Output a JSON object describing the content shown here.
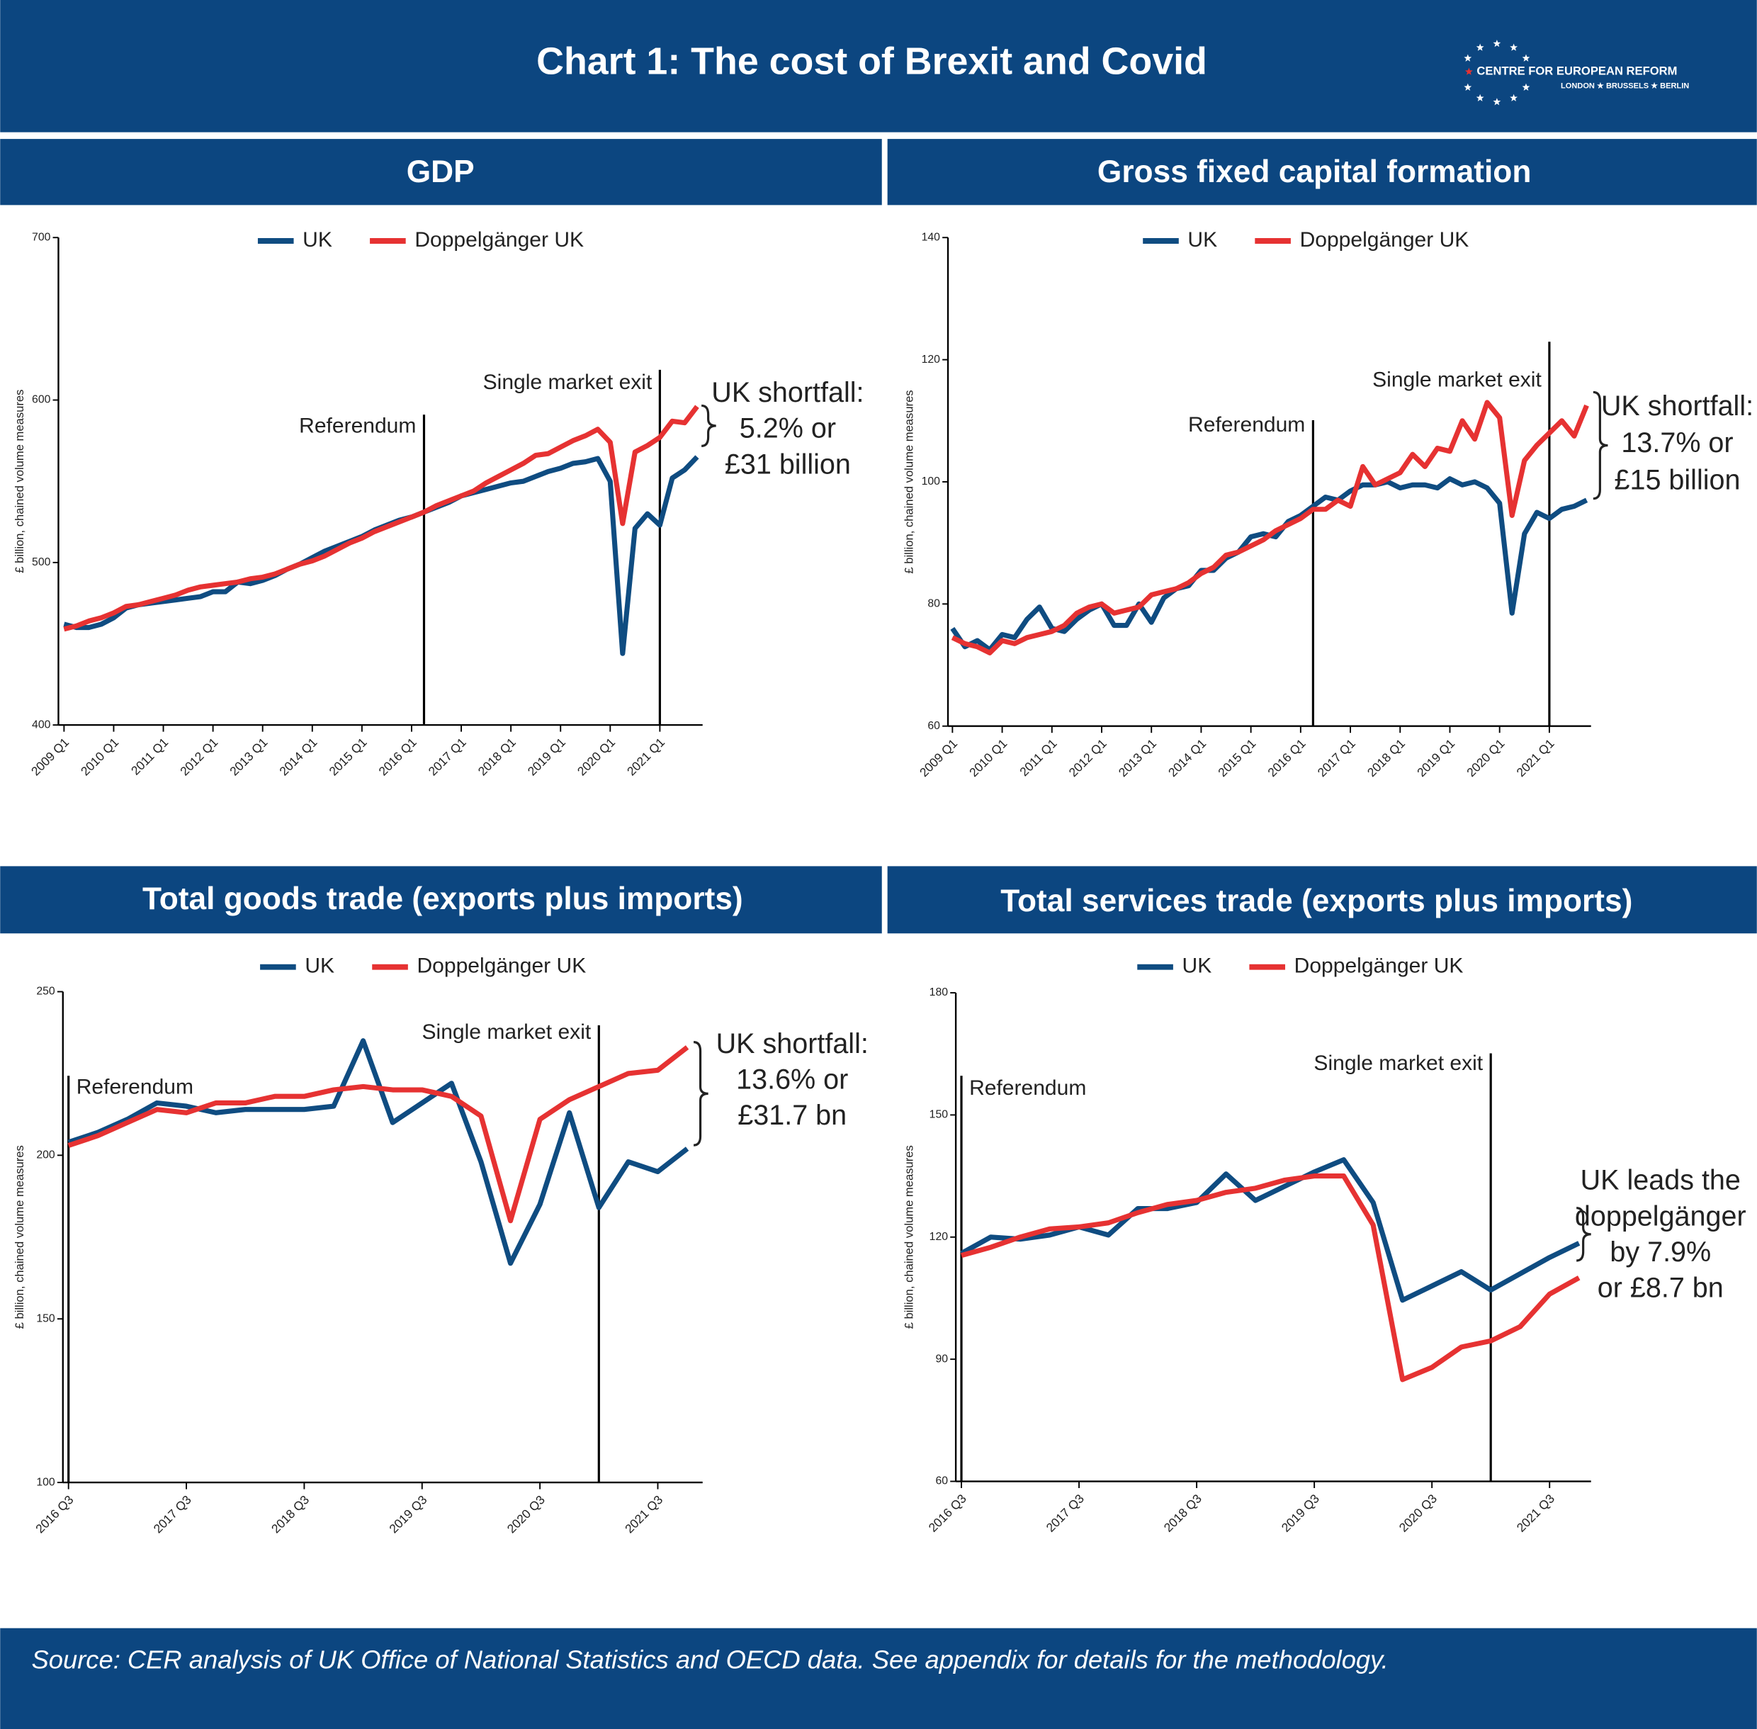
{
  "header": {
    "title": "Chart 1: The cost of Brexit and Covid",
    "logo": {
      "name": "CENTRE FOR EUROPEAN REFORM",
      "cities": "LONDON ★ BRUSSELS ★ BERLIN"
    }
  },
  "footer": {
    "source": "Source: CER analysis of UK Office of National Statistics and OECD data. See appendix for details for the methodology."
  },
  "chart_data": [
    {
      "type": "line",
      "title": "GDP",
      "ylabel": "£ billion, chained volume measures",
      "categories": [
        "2009 Q1",
        null,
        null,
        null,
        "2010 Q1",
        null,
        null,
        null,
        "2011 Q1",
        null,
        null,
        null,
        "2012 Q1",
        null,
        null,
        null,
        "2013 Q1",
        null,
        null,
        null,
        "2014 Q1",
        null,
        null,
        null,
        "2015 Q1",
        null,
        null,
        null,
        "2016 Q1",
        null,
        null,
        null,
        "2017 Q1",
        null,
        null,
        null,
        "2018 Q1",
        null,
        null,
        null,
        "2019 Q1",
        null,
        null,
        null,
        "2020 Q1",
        null,
        null,
        null,
        "2021 Q1",
        null,
        null,
        null
      ],
      "series": [
        {
          "name": "UK",
          "color": "#0f4c81",
          "values": [
            462,
            460,
            460,
            462,
            466,
            472,
            474,
            475,
            476,
            477,
            478,
            479,
            482,
            482,
            488,
            487,
            489,
            492,
            496,
            499,
            503,
            507,
            510,
            513,
            516,
            520,
            523,
            526,
            528,
            531,
            534,
            537,
            541,
            543,
            545,
            547,
            549,
            550,
            553,
            556,
            558,
            561,
            562,
            564,
            550,
            444,
            521,
            530,
            523,
            552,
            557,
            565
          ]
        },
        {
          "name": "Doppelgänger UK",
          "color": "#e63232",
          "values": [
            459,
            461,
            464,
            466,
            469,
            473,
            474,
            476,
            478,
            480,
            483,
            485,
            486,
            487,
            488,
            490,
            491,
            493,
            496,
            499,
            501,
            504,
            508,
            512,
            515,
            519,
            522,
            525,
            528,
            531,
            535,
            538,
            541,
            544,
            549,
            553,
            557,
            561,
            566,
            567,
            571,
            575,
            578,
            582,
            574,
            524,
            568,
            572,
            577,
            587,
            586,
            596
          ]
        }
      ],
      "ylim": [
        400,
        700
      ],
      "yticks": [
        400,
        500,
        600,
        700
      ],
      "annotations": [
        {
          "text": "Referendum",
          "x": 29
        },
        {
          "text": "Single market exit",
          "x": 48
        }
      ],
      "note": [
        "UK shortfall:",
        "5.2% or",
        "£31 billion"
      ]
    },
    {
      "type": "line",
      "title": "Gross fixed capital formation",
      "ylabel": "£ billion, chained volume measures",
      "categories": [
        "2009 Q1",
        null,
        null,
        null,
        "2010 Q1",
        null,
        null,
        null,
        "2011 Q1",
        null,
        null,
        null,
        "2012 Q1",
        null,
        null,
        null,
        "2013 Q1",
        null,
        null,
        null,
        "2014 Q1",
        null,
        null,
        null,
        "2015 Q1",
        null,
        null,
        null,
        "2016 Q1",
        null,
        null,
        null,
        "2017 Q1",
        null,
        null,
        null,
        "2018 Q1",
        null,
        null,
        null,
        "2019 Q1",
        null,
        null,
        null,
        "2020 Q1",
        null,
        null,
        null,
        "2021 Q1",
        null,
        null,
        null
      ],
      "series": [
        {
          "name": "UK",
          "color": "#0f4c81",
          "values": [
            76,
            73,
            74,
            72.5,
            75,
            74.5,
            77.5,
            79.5,
            76,
            75.5,
            77.5,
            79,
            80,
            76.5,
            76.5,
            80,
            77,
            81,
            82.5,
            83,
            85.5,
            85.5,
            87.5,
            88.5,
            91,
            91.5,
            91,
            93.5,
            94.5,
            96,
            97.5,
            97,
            98.5,
            99.5,
            99.5,
            100,
            99,
            99.5,
            99.5,
            99,
            100.5,
            99.5,
            100,
            99,
            96.5,
            78.5,
            91.5,
            95,
            94,
            95.5,
            96,
            97
          ]
        },
        {
          "name": "Doppelgänger UK",
          "color": "#e63232",
          "values": [
            74.5,
            73.5,
            73,
            72,
            74,
            73.5,
            74.5,
            75,
            75.5,
            76.5,
            78.5,
            79.5,
            80,
            78.5,
            79,
            79.5,
            81.5,
            82,
            82.5,
            83.5,
            85,
            86,
            88,
            88.5,
            89.5,
            90.5,
            92,
            93,
            94,
            95.5,
            95.5,
            97,
            96,
            102.5,
            99.5,
            100.5,
            101.5,
            104.5,
            102.5,
            105.5,
            105,
            110,
            107,
            113,
            110.5,
            94.5,
            103.5,
            106,
            108,
            110,
            107.5,
            112.5
          ]
        }
      ],
      "ylim": [
        60,
        140
      ],
      "yticks": [
        60,
        80,
        100,
        120,
        140
      ],
      "annotations": [
        {
          "text": "Referendum",
          "x": 29
        },
        {
          "text": "Single market exit",
          "x": 48
        }
      ],
      "note": [
        "UK shortfall:",
        "13.7% or",
        "£15 billion"
      ]
    },
    {
      "type": "line",
      "title": "Total goods trade (exports plus imports)",
      "ylabel": "£ billion, chained volume measures",
      "categories": [
        "2016 Q3",
        null,
        null,
        null,
        "2017 Q3",
        null,
        null,
        null,
        "2018 Q3",
        null,
        null,
        null,
        "2019 Q3",
        null,
        null,
        null,
        "2020 Q3",
        null,
        null,
        null,
        "2021 Q3",
        null
      ],
      "series": [
        {
          "name": "UK",
          "color": "#0f4c81",
          "values": [
            204,
            207,
            211,
            216,
            215,
            213,
            214,
            214,
            214,
            215,
            235,
            210,
            216,
            222,
            198,
            167,
            185,
            213,
            184,
            198,
            195,
            202
          ]
        },
        {
          "name": "Doppelgänger UK",
          "color": "#e63232",
          "values": [
            203,
            206,
            210,
            214,
            213,
            216,
            216,
            218,
            218,
            220,
            221,
            220,
            220,
            218,
            212,
            180,
            211,
            217,
            221,
            225,
            226,
            233
          ]
        }
      ],
      "ylim": [
        100,
        250
      ],
      "yticks": [
        100,
        150,
        200,
        250
      ],
      "annotations": [
        {
          "text": "Referendum",
          "x": 0
        },
        {
          "text": "Single market exit",
          "x": 18
        }
      ],
      "note": [
        "UK shortfall:",
        "13.6% or",
        "£31.7 bn"
      ]
    },
    {
      "type": "line",
      "title": "Total services trade (exports plus imports)",
      "ylabel": "£ billion, chained volume measures",
      "categories": [
        "2016 Q3",
        null,
        null,
        null,
        "2017 Q3",
        null,
        null,
        null,
        "2018 Q3",
        null,
        null,
        null,
        "2019 Q3",
        null,
        null,
        null,
        "2020 Q3",
        null,
        null,
        null,
        "2021 Q3",
        null
      ],
      "series": [
        {
          "name": "UK",
          "color": "#0f4c81",
          "values": [
            116,
            120,
            119.5,
            120.5,
            122.5,
            120.5,
            127,
            127,
            128.5,
            135.5,
            129,
            132.5,
            136,
            139,
            128.5,
            104.5,
            108,
            111.5,
            107,
            111,
            115,
            118.5
          ]
        },
        {
          "name": "Doppelgänger UK",
          "color": "#e63232",
          "values": [
            115.5,
            117.5,
            120,
            122,
            122.5,
            123.5,
            126,
            128,
            129,
            131,
            132,
            134,
            135,
            135,
            123,
            85,
            88,
            93,
            94.5,
            98,
            106,
            110
          ]
        }
      ],
      "ylim": [
        60,
        180
      ],
      "yticks": [
        60,
        90,
        120,
        150,
        180
      ],
      "annotations": [
        {
          "text": "Referendum",
          "x": 0
        },
        {
          "text": "Single market exit",
          "x": 18
        }
      ],
      "note": [
        "UK leads the",
        "doppelgänger",
        "by 7.9%",
        "or £8.7 bn"
      ]
    }
  ]
}
